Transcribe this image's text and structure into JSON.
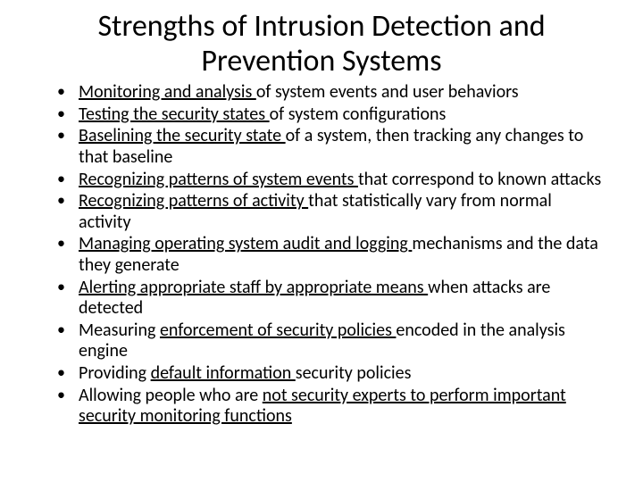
{
  "title": "Strengths of Intrusion Detection and Prevention Systems",
  "title_fontsize": 34,
  "body_fontsize": 20,
  "text_color": "#000000",
  "background_color": "#ffffff",
  "bullets": [
    {
      "u": "Monitoring and analysis ",
      "rest": "of system events and user behaviors"
    },
    {
      "u": "Testing the security states ",
      "rest": "of system configurations"
    },
    {
      "u": "Baselining the security state ",
      "rest": "of a system, then tracking any changes to that baseline"
    },
    {
      "u": "Recognizing patterns of system events ",
      "rest": "that correspond to known attacks"
    },
    {
      "u": "Recognizing patterns of activity ",
      "rest": "that statistically vary from normal activity"
    },
    {
      "u": "Managing operating system audit and logging ",
      "rest": "mechanisms and the data they generate"
    },
    {
      "u": "Alerting appropriate staff by appropriate means ",
      "rest": "when attacks are detected"
    },
    {
      "pre": "Measuring ",
      "u": "enforcement of security policies ",
      "rest": "encoded in the analysis engine"
    },
    {
      "pre": "Providing ",
      "u": "default information ",
      "rest": "security policies"
    },
    {
      "pre": "Allowing people who are ",
      "u": "not security experts to perform important security monitoring functions",
      "rest": ""
    }
  ]
}
